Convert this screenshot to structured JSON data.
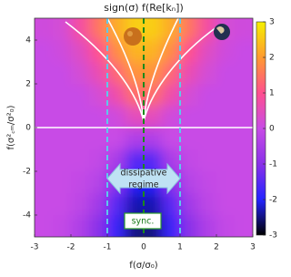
{
  "chart_data": {
    "type": "heatmap",
    "title": "sign(σ) f(Re[kₙ])",
    "xlabel": "f(σ/σ₀)",
    "ylabel": "f(σ²꜀ₘ/σ²₀)",
    "xlim": [
      -3,
      3
    ],
    "ylim": [
      -5,
      5
    ],
    "xticks": [
      -3,
      -2,
      -1,
      0,
      1,
      2,
      3
    ],
    "yticks": [
      -4,
      -2,
      0,
      2,
      4
    ],
    "x": [
      -2.75,
      -2.25,
      -1.75,
      -1.25,
      -0.75,
      -0.25,
      0.25,
      0.75,
      1.25,
      1.75,
      2.25,
      2.75
    ],
    "y": [
      4.5,
      3.5,
      2.5,
      1.5,
      0.5,
      -0.5,
      -1.5,
      -2.5,
      -3.5,
      -4.5
    ],
    "z": [
      [
        0.1,
        0.2,
        0.8,
        1.5,
        2.2,
        2.6,
        2.6,
        2.2,
        1.5,
        0.8,
        0.2,
        0.1
      ],
      [
        0,
        0.1,
        0.4,
        1.0,
        1.8,
        2.3,
        2.3,
        1.8,
        1.0,
        0.4,
        0.1,
        0
      ],
      [
        0,
        0,
        0.2,
        0.6,
        1.3,
        1.9,
        1.9,
        1.3,
        0.6,
        0.2,
        0,
        0
      ],
      [
        0,
        0,
        0,
        0.2,
        0.7,
        1.4,
        1.4,
        0.7,
        0.2,
        0,
        0,
        0
      ],
      [
        0,
        0,
        0,
        0,
        0.1,
        0.5,
        0.5,
        0.1,
        0,
        0,
        0,
        0
      ],
      [
        0,
        0,
        0,
        0,
        0,
        -0.4,
        -0.4,
        0,
        0,
        0,
        0,
        0
      ],
      [
        0,
        0,
        0,
        -0.1,
        -0.5,
        -1.5,
        -1.5,
        -0.5,
        -0.1,
        0,
        0,
        0
      ],
      [
        0,
        0,
        -0.1,
        -0.3,
        -1.0,
        -2.0,
        -2.0,
        -1.0,
        -0.3,
        -0.1,
        0,
        0
      ],
      [
        0,
        0,
        -0.2,
        -0.6,
        -1.5,
        -2.3,
        -2.3,
        -1.5,
        -0.6,
        -0.2,
        0,
        0
      ],
      [
        0,
        -0.1,
        -0.4,
        -1.0,
        -1.8,
        -2.5,
        -2.5,
        -1.8,
        -1.0,
        -0.4,
        -0.1,
        0
      ]
    ],
    "clim": [
      -3,
      3
    ],
    "cticks": [
      -3,
      -2,
      -1,
      0,
      1,
      2,
      3
    ],
    "colormap": [
      {
        "value": -3,
        "color": "#000000"
      },
      {
        "value": -2,
        "color": "#2424ff"
      },
      {
        "value": -1,
        "color": "#8a30e8"
      },
      {
        "value": 0,
        "color": "#c84ce6"
      },
      {
        "value": 1,
        "color": "#ff4f8f"
      },
      {
        "value": 2,
        "color": "#ff9a30"
      },
      {
        "value": 3,
        "color": "#f5f000"
      }
    ],
    "vlines": [
      {
        "x": -1,
        "color": "#5ec8ec"
      },
      {
        "x": 0,
        "color": "#1a8a1a"
      },
      {
        "x": 1,
        "color": "#5ec8ec"
      }
    ],
    "hlines": [
      {
        "y": 0,
        "color": "#ffffff"
      }
    ],
    "annotations": [
      "dissipative",
      "regime",
      "sync."
    ]
  }
}
